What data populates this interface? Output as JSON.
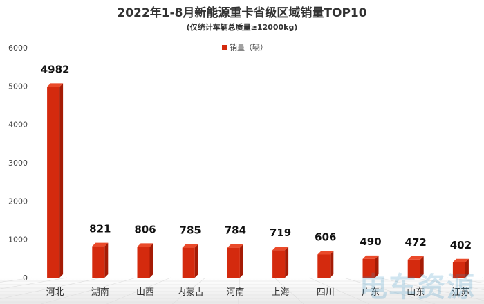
{
  "chart_data": {
    "type": "bar",
    "title": "2022年1-8月新能源重卡省级区域销量TOP10",
    "subtitle": "(仅统计车辆总质量≥12000kg)",
    "categories": [
      "河北",
      "湖南",
      "山西",
      "内蒙古",
      "河南",
      "上海",
      "四川",
      "广东",
      "山东",
      "江苏"
    ],
    "series": [
      {
        "name": "销量（辆）",
        "values": [
          4982,
          821,
          806,
          785,
          784,
          719,
          606,
          490,
          472,
          402
        ],
        "color": "#d42a0e"
      }
    ],
    "yticks": [
      0,
      1000,
      2000,
      3000,
      4000,
      5000,
      6000
    ],
    "ylim": [
      0,
      6000
    ],
    "grid": false,
    "legend_position": "top-center",
    "data_labels": true
  },
  "watermark_text": "电车资源"
}
